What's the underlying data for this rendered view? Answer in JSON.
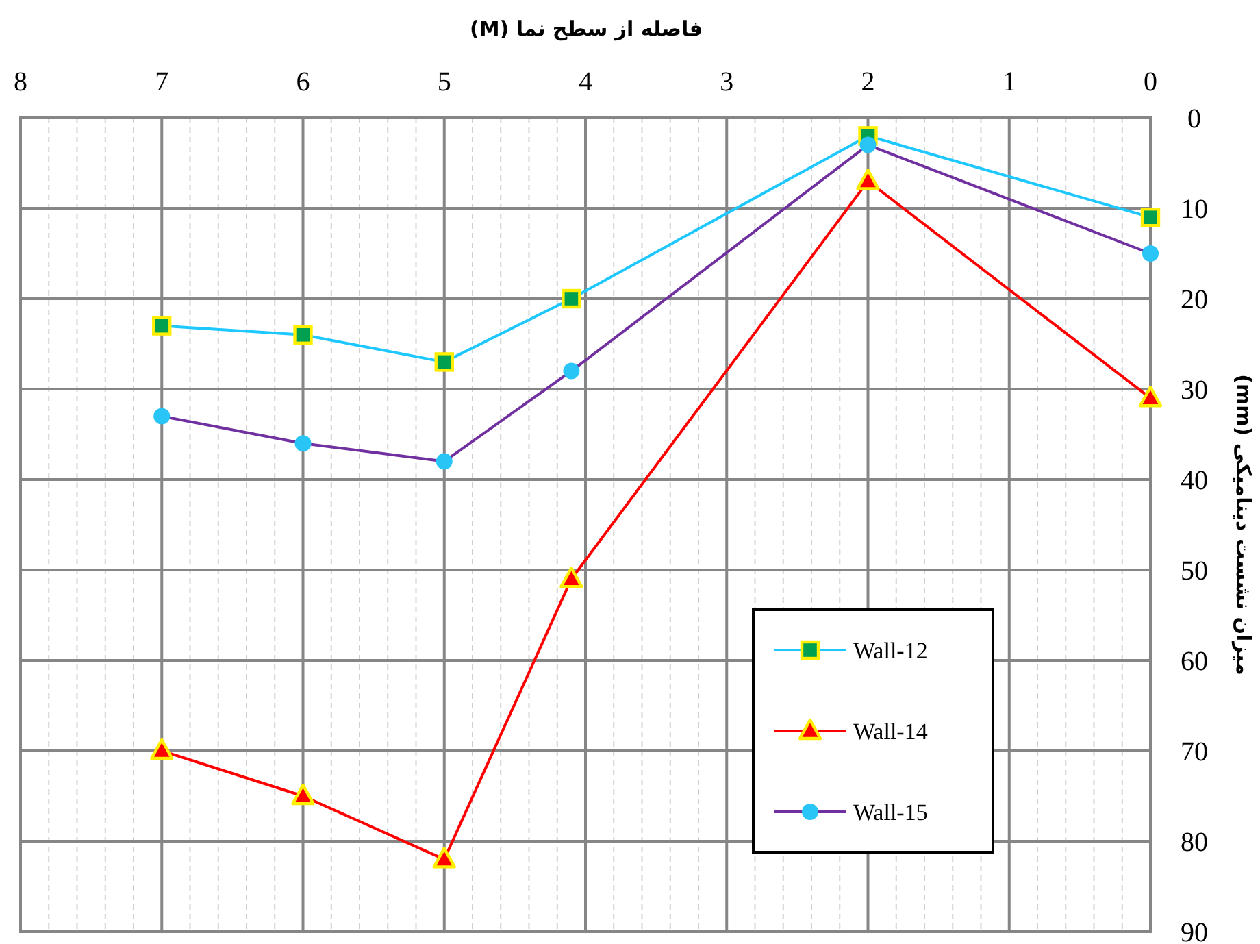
{
  "chart_data": {
    "type": "line",
    "xlabel": "فاصله از سطح نما (M)",
    "ylabel": "میزان نشست دینامیکی (mm)",
    "x": [
      7,
      6,
      5,
      4.1,
      2,
      0
    ],
    "series": [
      {
        "name": "Wall-12",
        "color": "#1ec8ff",
        "marker": "square",
        "values": [
          23,
          24,
          27,
          20,
          2,
          11
        ]
      },
      {
        "name": "Wall-14",
        "color": "#ff0000",
        "marker": "triangle",
        "values": [
          70,
          75,
          82,
          51,
          7,
          31
        ]
      },
      {
        "name": "Wall-15",
        "color": "#7030a0",
        "marker": "circle",
        "values": [
          33,
          36,
          38,
          28,
          3,
          15
        ]
      }
    ],
    "xlim": [
      8,
      0
    ],
    "xticks": [
      8,
      7,
      6,
      5,
      4,
      3,
      2,
      1,
      0
    ],
    "ylim": [
      90,
      0
    ],
    "yticks": [
      0,
      10,
      20,
      30,
      40,
      50,
      60,
      70,
      80,
      90
    ],
    "grid": true,
    "legend": "bottom right",
    "line_style": "solid"
  }
}
